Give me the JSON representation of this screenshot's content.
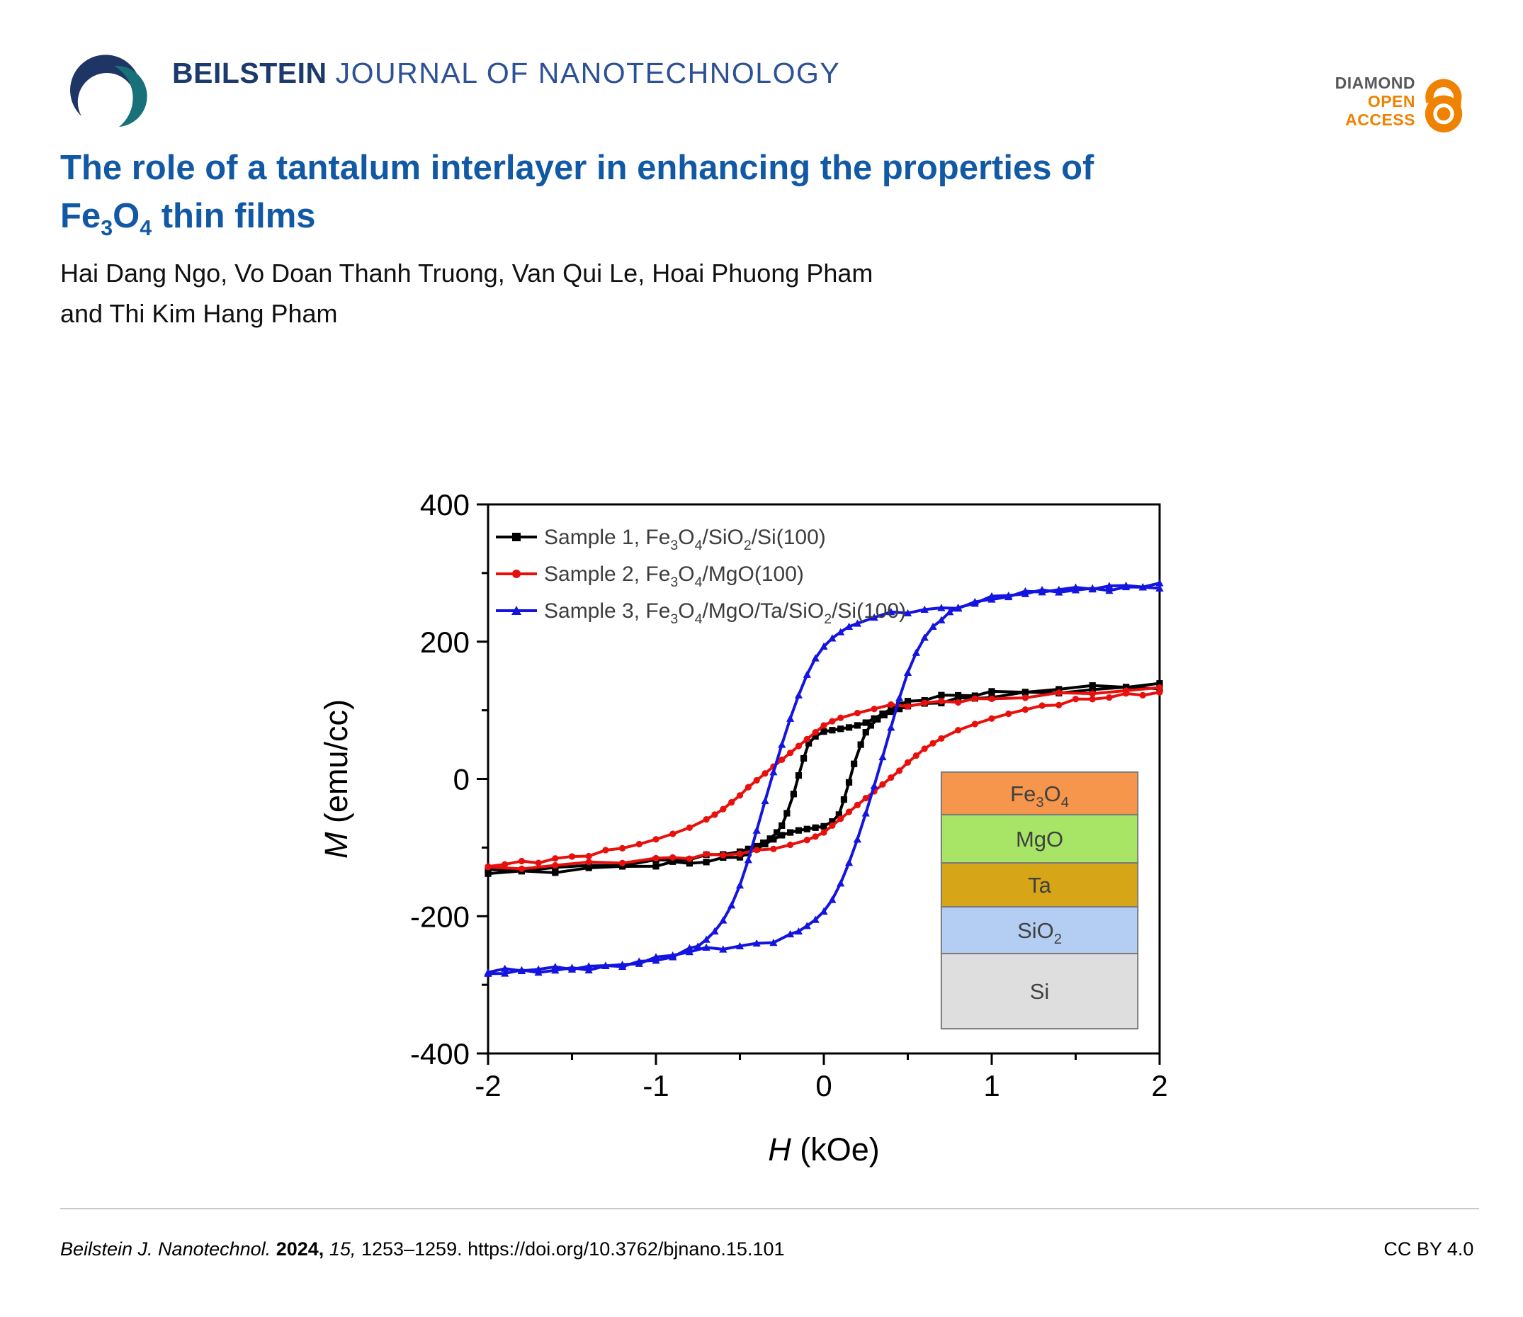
{
  "colors": {
    "title_blue": "#1259a5",
    "wordmark_navy": "#1d3a6d",
    "wordmark_blue": "#2d5196",
    "badge_gray": "#58585a",
    "badge_orange": "#ef8200",
    "logo_navy": "#1f3566",
    "logo_crimson": "#cf1054",
    "logo_teal": "#187078"
  },
  "header": {
    "journal_bold": "BEILSTEIN",
    "journal_rest": "JOURNAL OF NANOTECHNOLOGY",
    "badge_line1": "DIAMOND",
    "badge_line2": "OPEN",
    "badge_line3": "ACCESS"
  },
  "title": {
    "line1": "The role of a tantalum interlayer in enhancing the properties of",
    "line2_rich": [
      [
        "Fe",
        0
      ],
      [
        "3",
        1
      ],
      [
        "O",
        0
      ],
      [
        "4",
        1
      ],
      [
        " thin films",
        0
      ]
    ]
  },
  "authors": {
    "line1": "Hai Dang Ngo, Vo Doan Thanh Truong, Van Qui Le, Hoai Phuong Pham",
    "line2": "and Thi Kim Hang Pham"
  },
  "footer": {
    "journal_italic": "Beilstein J. Nanotechnol.",
    "year_bold": "2024,",
    "volume_italic": "15,",
    "pages": "1253–1259.",
    "doi": "https://doi.org/10.3762/bjnano.15.101",
    "license": "CC BY 4.0"
  },
  "chart_data": {
    "type": "line",
    "title": "",
    "xlabel_rich": [
      [
        "H",
        2
      ],
      [
        " (kOe)",
        0
      ]
    ],
    "ylabel_rich": [
      [
        "M",
        2
      ],
      [
        " (emu/cc)",
        0
      ]
    ],
    "xlim": [
      -2,
      2
    ],
    "ylim": [
      -400,
      400
    ],
    "x_major_ticks": [
      -2,
      -1,
      0,
      1,
      2
    ],
    "x_minor_ticks": [
      -1.5,
      -0.5,
      0.5,
      1.5
    ],
    "y_major_ticks": [
      -400,
      -200,
      0,
      200,
      400
    ],
    "y_minor_ticks": [
      -300,
      -100,
      100,
      300
    ],
    "grid": false,
    "legend_position": "top-left",
    "series": [
      {
        "id": "sample1",
        "label_rich": [
          [
            "Sample 1, Fe",
            0
          ],
          [
            "3",
            1
          ],
          [
            "O",
            0
          ],
          [
            "4",
            1
          ],
          [
            "/SiO",
            0
          ],
          [
            "2",
            1
          ],
          [
            "/Si(100)",
            0
          ]
        ],
        "color": "#000000",
        "marker": "square",
        "branch_up": [
          [
            -2,
            -138
          ],
          [
            -1.8,
            -136
          ],
          [
            -1.6,
            -134
          ],
          [
            -1.4,
            -131
          ],
          [
            -1.2,
            -128
          ],
          [
            -1.0,
            -125
          ],
          [
            -0.9,
            -123
          ],
          [
            -0.8,
            -122
          ],
          [
            -0.7,
            -120
          ],
          [
            -0.6,
            -117
          ],
          [
            -0.5,
            -112
          ],
          [
            -0.45,
            -108
          ],
          [
            -0.4,
            -102
          ],
          [
            -0.35,
            -95
          ],
          [
            -0.3,
            -88
          ],
          [
            -0.25,
            -82
          ],
          [
            -0.2,
            -78
          ],
          [
            -0.15,
            -75
          ],
          [
            -0.1,
            -73
          ],
          [
            -0.05,
            -71
          ],
          [
            0,
            -69
          ],
          [
            0.05,
            -62
          ],
          [
            0.09,
            -52
          ],
          [
            0.12,
            -30
          ],
          [
            0.15,
            -5
          ],
          [
            0.18,
            22
          ],
          [
            0.22,
            50
          ],
          [
            0.25,
            68
          ],
          [
            0.28,
            78
          ],
          [
            0.32,
            87
          ],
          [
            0.36,
            93
          ],
          [
            0.4,
            98
          ],
          [
            0.45,
            102
          ],
          [
            0.5,
            106
          ],
          [
            0.6,
            110
          ],
          [
            0.7,
            113
          ],
          [
            0.8,
            116
          ],
          [
            0.9,
            118
          ],
          [
            1.0,
            120
          ],
          [
            1.2,
            124
          ],
          [
            1.4,
            127
          ],
          [
            1.6,
            130
          ],
          [
            1.8,
            132
          ],
          [
            2,
            134
          ]
        ],
        "branch_down": "mirror-of-branch_up"
      },
      {
        "id": "sample2",
        "label_rich": [
          [
            "Sample 2, Fe",
            0
          ],
          [
            "3",
            1
          ],
          [
            "O",
            0
          ],
          [
            "4",
            1
          ],
          [
            "/MgO(100)",
            0
          ]
        ],
        "color": "#e8100c",
        "marker": "circle",
        "branch_up": [
          [
            -2,
            -131
          ],
          [
            -1.8,
            -129
          ],
          [
            -1.6,
            -126
          ],
          [
            -1.4,
            -123
          ],
          [
            -1.2,
            -120
          ],
          [
            -1.0,
            -117
          ],
          [
            -0.9,
            -115
          ],
          [
            -0.8,
            -114
          ],
          [
            -0.7,
            -112
          ],
          [
            -0.6,
            -110
          ],
          [
            -0.5,
            -108
          ],
          [
            -0.4,
            -106
          ],
          [
            -0.3,
            -102
          ],
          [
            -0.2,
            -96
          ],
          [
            -0.1,
            -89
          ],
          [
            -0.05,
            -84
          ],
          [
            0,
            -78
          ],
          [
            0.05,
            -68
          ],
          [
            0.1,
            -58
          ],
          [
            0.15,
            -48
          ],
          [
            0.2,
            -38
          ],
          [
            0.25,
            -28
          ],
          [
            0.3,
            -18
          ],
          [
            0.35,
            -8
          ],
          [
            0.4,
            2
          ],
          [
            0.45,
            12
          ],
          [
            0.5,
            24
          ],
          [
            0.55,
            34
          ],
          [
            0.6,
            44
          ],
          [
            0.65,
            52
          ],
          [
            0.7,
            59
          ],
          [
            0.8,
            71
          ],
          [
            0.9,
            80
          ],
          [
            1.0,
            88
          ],
          [
            1.1,
            95
          ],
          [
            1.2,
            101
          ],
          [
            1.3,
            106
          ],
          [
            1.4,
            110
          ],
          [
            1.5,
            114
          ],
          [
            1.6,
            117
          ],
          [
            1.7,
            120
          ],
          [
            1.8,
            122
          ],
          [
            1.9,
            124
          ],
          [
            2,
            126
          ]
        ],
        "branch_down": "mirror-of-branch_up"
      },
      {
        "id": "sample3",
        "label_rich": [
          [
            "Sample 3, Fe",
            0
          ],
          [
            "3",
            1
          ],
          [
            "O",
            0
          ],
          [
            "4",
            1
          ],
          [
            "/MgO/Ta/SiO",
            0
          ],
          [
            "2",
            1
          ],
          [
            "/Si(100)",
            0
          ]
        ],
        "color": "#1414e0",
        "marker": "triangle",
        "branch_up": [
          [
            -2,
            -283
          ],
          [
            -1.9,
            -282
          ],
          [
            -1.8,
            -281
          ],
          [
            -1.7,
            -280
          ],
          [
            -1.6,
            -279
          ],
          [
            -1.5,
            -277
          ],
          [
            -1.4,
            -276
          ],
          [
            -1.3,
            -274
          ],
          [
            -1.2,
            -271
          ],
          [
            -1.1,
            -267
          ],
          [
            -1.0,
            -262
          ],
          [
            -0.9,
            -256
          ],
          [
            -0.8,
            -251
          ],
          [
            -0.7,
            -248
          ],
          [
            -0.6,
            -246
          ],
          [
            -0.5,
            -244
          ],
          [
            -0.4,
            -241
          ],
          [
            -0.3,
            -236
          ],
          [
            -0.2,
            -228
          ],
          [
            -0.15,
            -222
          ],
          [
            -0.1,
            -214
          ],
          [
            -0.05,
            -205
          ],
          [
            0,
            -193
          ],
          [
            0.05,
            -176
          ],
          [
            0.1,
            -152
          ],
          [
            0.15,
            -122
          ],
          [
            0.2,
            -88
          ],
          [
            0.25,
            -50
          ],
          [
            0.3,
            -10
          ],
          [
            0.35,
            32
          ],
          [
            0.4,
            75
          ],
          [
            0.45,
            118
          ],
          [
            0.5,
            155
          ],
          [
            0.55,
            184
          ],
          [
            0.6,
            206
          ],
          [
            0.65,
            222
          ],
          [
            0.7,
            234
          ],
          [
            0.75,
            242
          ],
          [
            0.8,
            249
          ],
          [
            0.9,
            258
          ],
          [
            1.0,
            264
          ],
          [
            1.1,
            268
          ],
          [
            1.2,
            271
          ],
          [
            1.3,
            273
          ],
          [
            1.4,
            274
          ],
          [
            1.5,
            275
          ],
          [
            1.6,
            276
          ],
          [
            1.7,
            277
          ],
          [
            1.8,
            278
          ],
          [
            1.9,
            279
          ],
          [
            2,
            280
          ]
        ],
        "branch_down": "mirror-of-branch_up"
      }
    ],
    "inset": {
      "x_range": [
        0.7,
        1.87
      ],
      "y_range": [
        -364,
        10
      ],
      "border_color": "#7a7a7a",
      "label_color": "#404040",
      "layers": [
        {
          "label_rich": [
            [
              "Fe",
              0
            ],
            [
              "3",
              1
            ],
            [
              "O",
              0
            ],
            [
              "4",
              1
            ]
          ],
          "color": "#f6954c",
          "h": 0.166
        },
        {
          "label_rich": [
            [
              "MgO",
              0
            ]
          ],
          "color": "#a8e566",
          "h": 0.188
        },
        {
          "label_rich": [
            [
              "Ta",
              0
            ]
          ],
          "color": "#d6a518",
          "h": 0.171
        },
        {
          "label_rich": [
            [
              "SiO",
              0
            ],
            [
              "2",
              1
            ]
          ],
          "color": "#b4cdf2",
          "h": 0.182
        },
        {
          "label_rich": [
            [
              "Si",
              0
            ]
          ],
          "color": "#dedede",
          "h": 0.293
        }
      ]
    }
  }
}
